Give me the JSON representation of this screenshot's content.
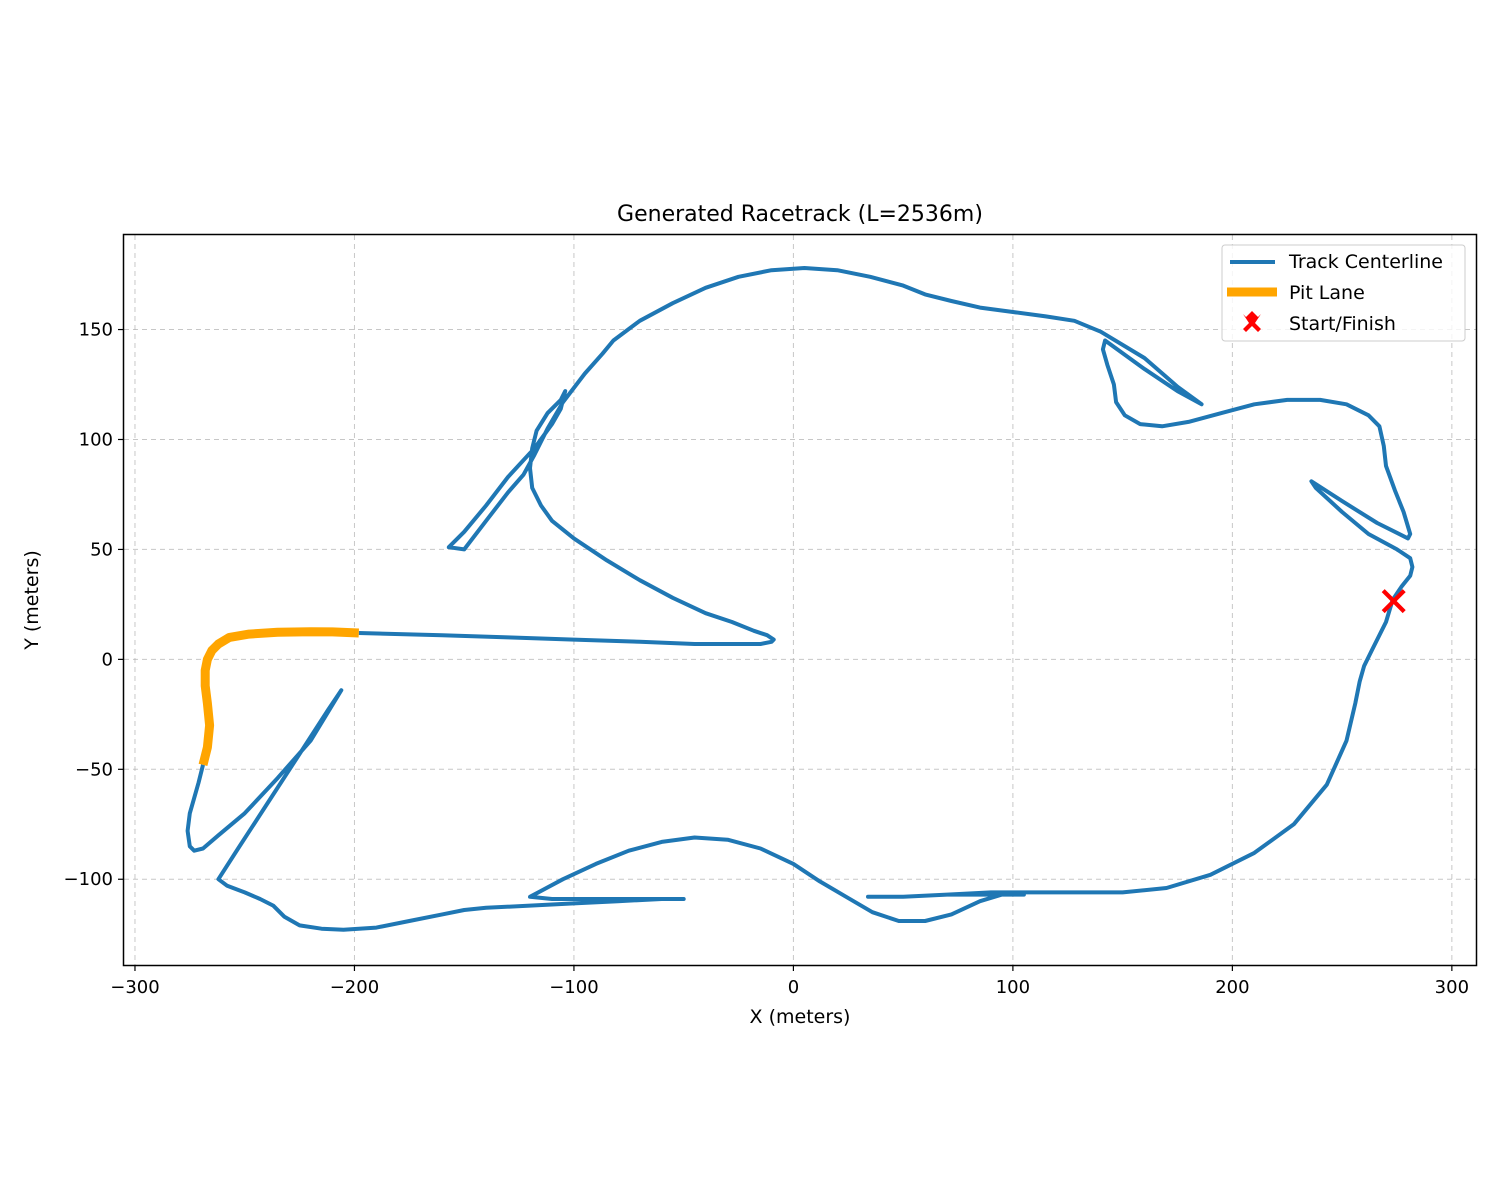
{
  "chart_data": {
    "type": "line",
    "title": "Generated Racetrack (L=2536m)",
    "xlabel": "X (meters)",
    "ylabel": "Y (meters)",
    "xlim": [
      -305,
      311
    ],
    "ylim": [
      -139,
      193
    ],
    "xticks": [
      -300,
      -200,
      -100,
      0,
      100,
      200,
      300
    ],
    "yticks": [
      -100,
      -50,
      0,
      50,
      100,
      150
    ],
    "xtick_labels": [
      "−300",
      "−200",
      "−100",
      "0",
      "100",
      "200",
      "300"
    ],
    "ytick_labels": [
      "−100",
      "−50",
      "0",
      "50",
      "100",
      "150"
    ],
    "grid": true,
    "legend_position": "top-right",
    "series": [
      {
        "name": "Track Centerline",
        "color": "#1f77b4",
        "style": "line",
        "x": [
          273,
          277,
          281,
          282,
          281,
          275,
          262,
          250,
          238,
          236,
          250,
          266,
          280,
          281,
          278,
          274,
          270,
          269,
          267,
          262,
          252,
          240,
          225,
          210,
          195,
          180,
          168,
          158,
          151,
          147,
          146,
          143,
          141,
          142,
          160,
          175,
          186,
          175,
          160,
          140,
          128,
          115,
          100,
          85,
          72,
          60,
          50,
          35,
          20,
          5,
          -10,
          -25,
          -40,
          -55,
          -70,
          -82,
          -87,
          -95,
          -105,
          -112,
          -118,
          -123,
          -130,
          -140,
          -150,
          -157,
          -150,
          -140,
          -130,
          -118,
          -110,
          -106,
          -104,
          -106,
          -112,
          -117,
          -119,
          -120,
          -119,
          -115,
          -110,
          -100,
          -85,
          -70,
          -55,
          -40,
          -28,
          -18,
          -12,
          -9,
          -10,
          -15,
          -25,
          -45,
          -70,
          -100,
          -130,
          -160,
          -198
        ],
        "y": [
          27,
          33,
          38,
          42,
          46,
          50,
          57,
          67,
          78,
          81,
          72,
          62,
          55,
          57,
          67,
          77,
          88,
          97,
          106,
          111,
          116,
          118,
          118,
          116,
          112,
          108,
          106,
          107,
          111,
          117,
          125,
          134,
          141,
          145,
          132,
          122,
          116,
          124,
          137,
          149,
          154,
          156,
          158,
          160,
          163,
          166,
          170,
          174,
          177,
          178,
          177,
          174,
          169,
          162,
          154,
          145,
          139,
          130,
          117,
          105,
          93,
          84,
          76,
          63,
          50,
          51,
          58,
          70,
          83,
          96,
          107,
          114,
          122,
          118,
          112,
          104,
          96,
          87,
          78,
          70,
          63,
          55,
          45,
          36,
          28,
          21,
          17,
          13,
          11,
          9,
          8,
          7,
          7,
          7,
          8,
          9,
          10,
          11,
          12
        ]
      },
      {
        "name": "Pit Lane",
        "color": "#ffa500",
        "style": "line",
        "x": [
          -198,
          -210,
          -220,
          -235,
          -248,
          -257,
          -262,
          -265,
          -267,
          -268,
          -268,
          -267,
          -266,
          -267,
          -269
        ],
        "y": [
          12,
          12.5,
          12.6,
          12.3,
          11.5,
          10,
          7,
          4,
          0,
          -5,
          -12,
          -20,
          -30,
          -40,
          -48
        ]
      },
      {
        "name": "",
        "color": "#1f77b4",
        "style": "line",
        "x": [
          -269,
          -271,
          -273,
          -275,
          -276,
          -275,
          -273,
          -269,
          -262,
          -250,
          -235,
          -220,
          -206,
          -212,
          -225,
          -240,
          -253,
          -262,
          -258,
          -250,
          -243,
          -237,
          -232,
          -225,
          -215,
          -205,
          -190,
          -175,
          -160,
          -150,
          -140,
          -120,
          -100,
          -80,
          -60,
          -50,
          -80,
          -110,
          -120,
          -105,
          -90,
          -75,
          -60,
          -45,
          -30,
          -15,
          0,
          12,
          24,
          36,
          48,
          60,
          72,
          85,
          95,
          105,
          90,
          70,
          50,
          34,
          50,
          70,
          90,
          110,
          130,
          150,
          170,
          190,
          210,
          228,
          243,
          252,
          256,
          258,
          260,
          264,
          270,
          273
        ],
        "y": [
          -48,
          -56,
          -63,
          -70,
          -78,
          -85,
          -87,
          -86,
          -80,
          -70,
          -54,
          -37,
          -14,
          -23,
          -43,
          -66,
          -86,
          -100,
          -103,
          -106,
          -109,
          -112,
          -117,
          -121,
          -122.5,
          -123,
          -122,
          -119,
          -116,
          -114,
          -113,
          -112,
          -111,
          -110,
          -109,
          -109,
          -109,
          -109,
          -108,
          -100,
          -93,
          -87,
          -83,
          -81,
          -82,
          -86,
          -93,
          -101,
          -108,
          -115,
          -119,
          -119,
          -116,
          -110,
          -107,
          -107,
          -107,
          -107,
          -108,
          -108,
          -108,
          -107,
          -106,
          -106,
          -106,
          -106,
          -104,
          -98,
          -88,
          -75,
          -57,
          -37,
          -20,
          -10,
          -3,
          5,
          17,
          27
        ]
      }
    ],
    "markers": [
      {
        "name": "Start/Finish",
        "color": "#ff0000",
        "marker": "X",
        "x": 273.5,
        "y": 26.5
      }
    ]
  },
  "legend": [
    {
      "label": "Track Centerline",
      "color": "#1f77b4",
      "kind": "line-thin"
    },
    {
      "label": "Pit Lane",
      "color": "#ffa500",
      "kind": "line-thick"
    },
    {
      "label": "Start/Finish",
      "color": "#ff0000",
      "kind": "x-marker"
    }
  ]
}
